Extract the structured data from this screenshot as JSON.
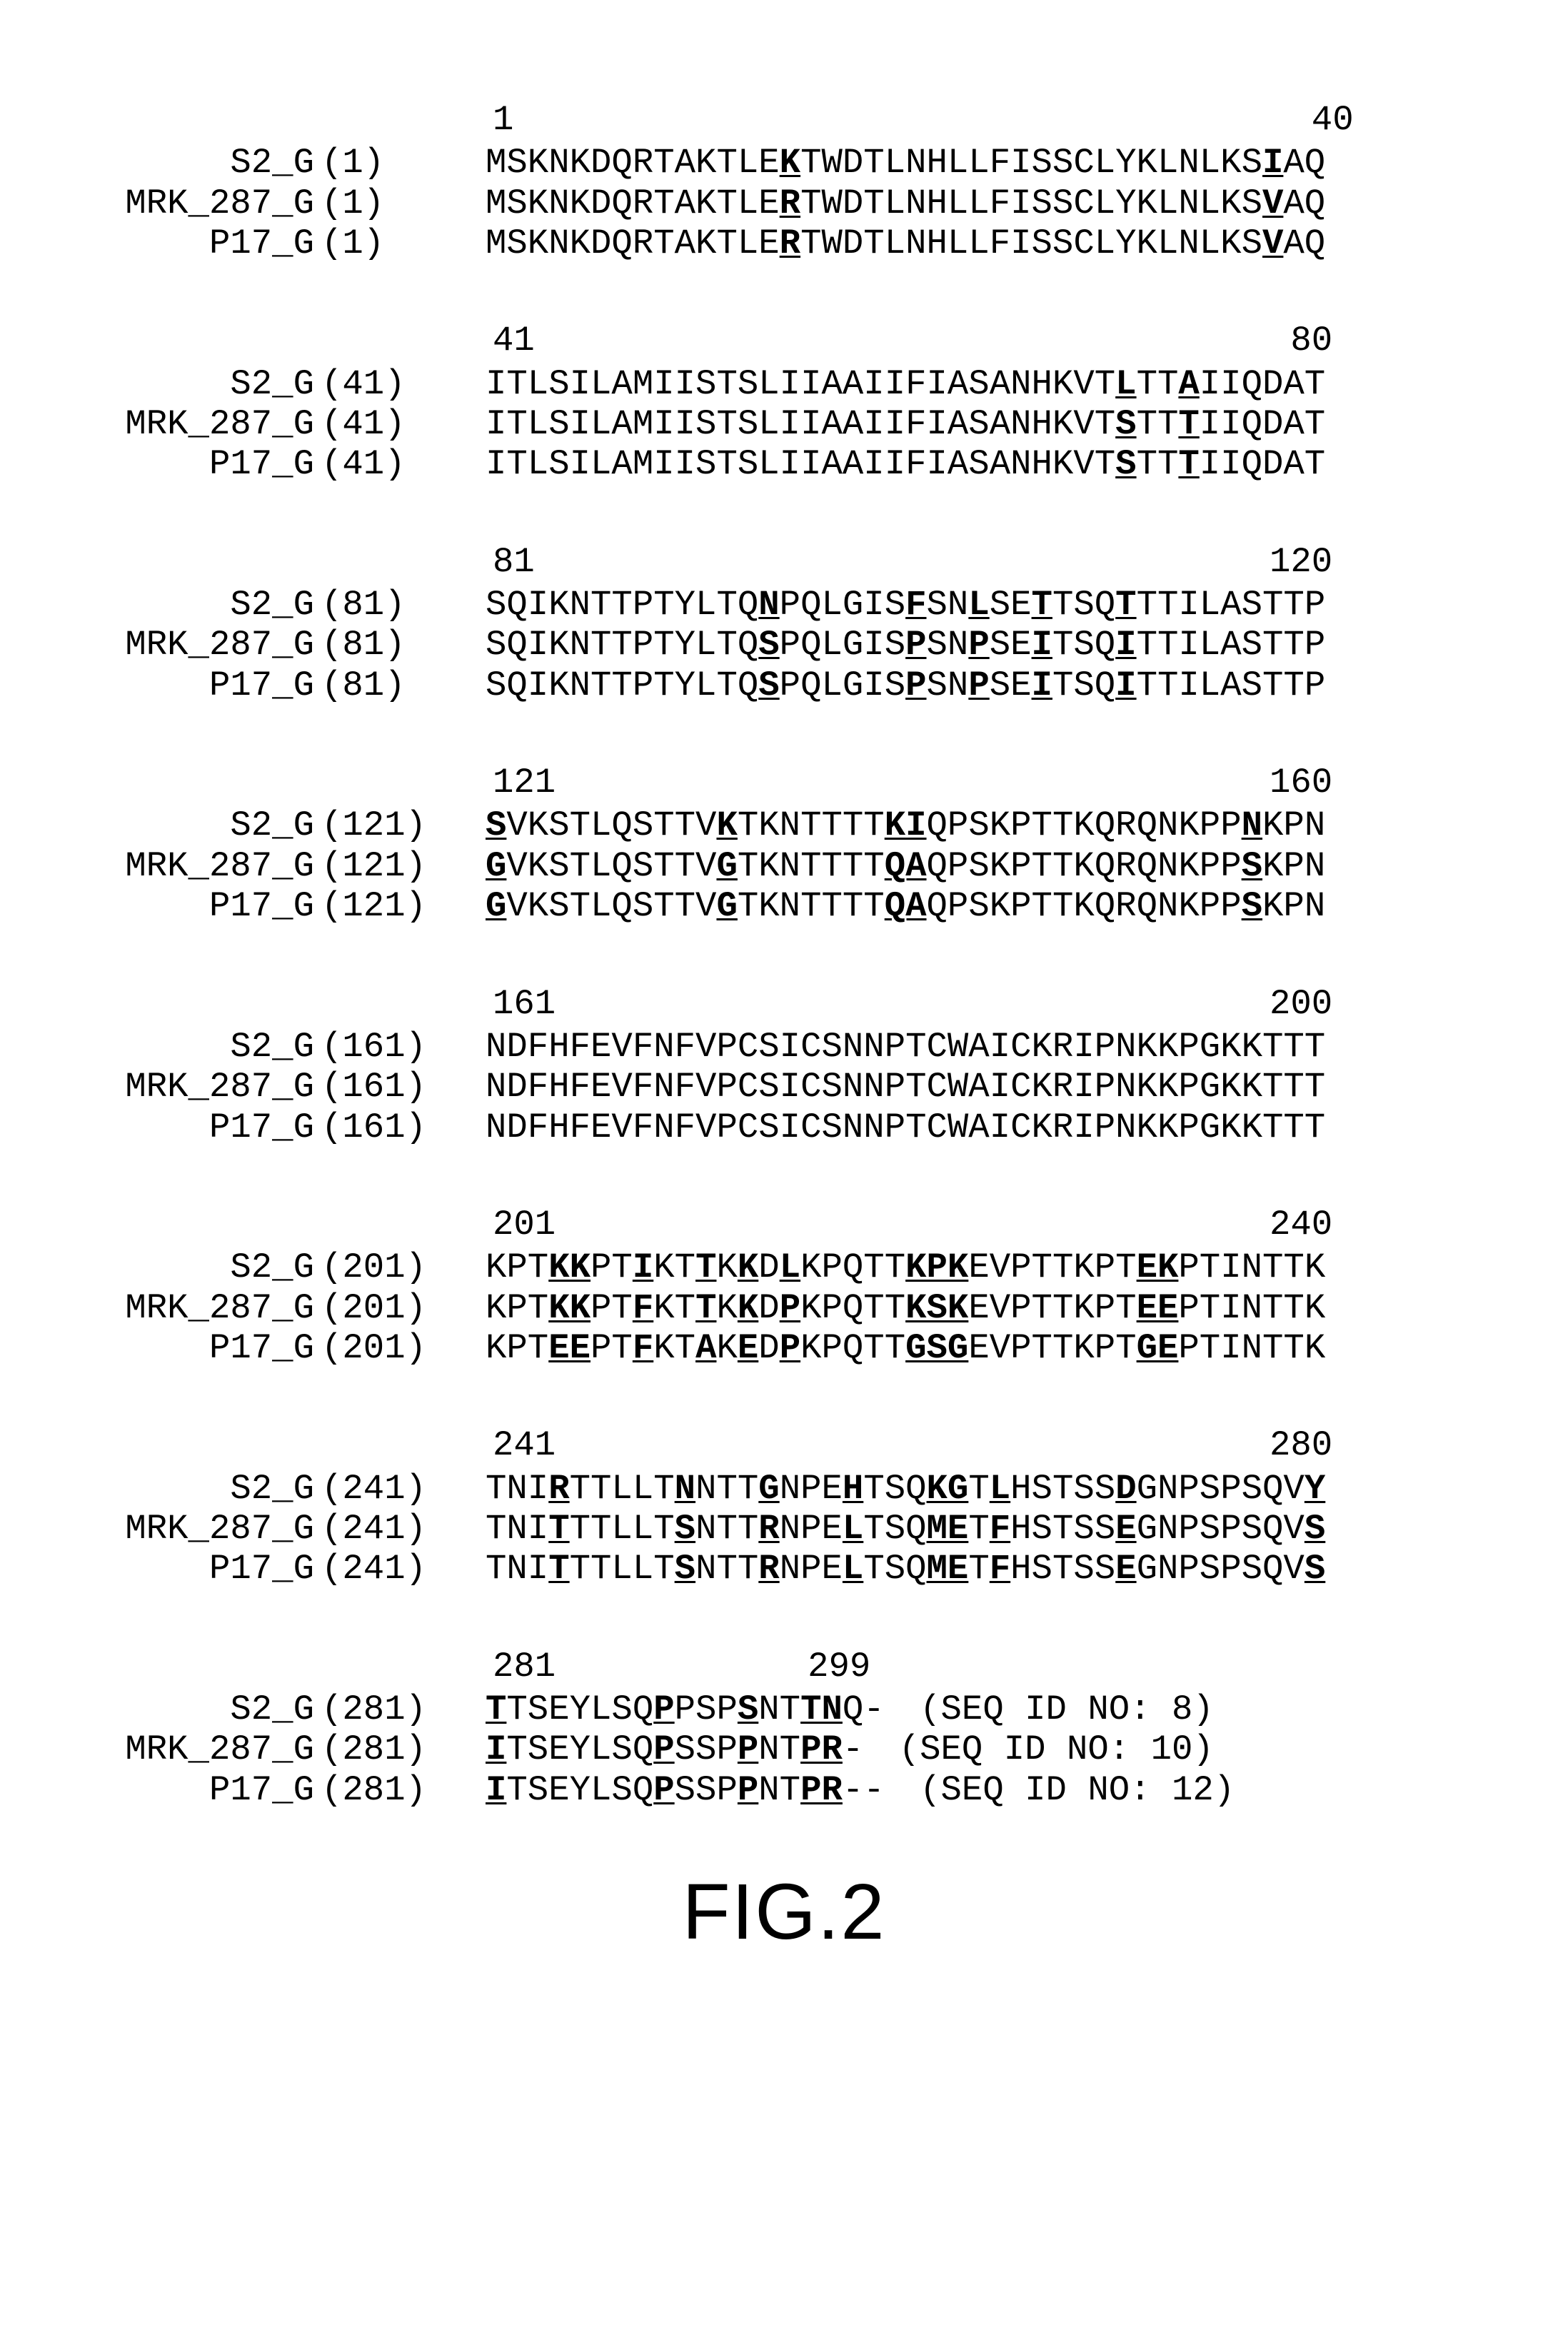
{
  "font": {
    "family": "Courier New",
    "size_pt": 37,
    "color": "#000000"
  },
  "background_color": "#ffffff",
  "figure_label": "FIG.2",
  "blocks": [
    {
      "ruler": {
        "start": "1",
        "end": "40",
        "gap_chars": 38
      },
      "rows": [
        {
          "name": "S2_G",
          "pos": "(1)",
          "seq": [
            [
              "MSKNKDQRTAKTLE",
              0
            ],
            [
              "K",
              1
            ],
            [
              "TWDTLNHLLFISSCLYKLNLKS",
              0
            ],
            [
              "I",
              1
            ],
            [
              "AQ",
              0
            ]
          ]
        },
        {
          "name": "MRK_287_G",
          "pos": "(1)",
          "seq": [
            [
              "MSKNKDQRTAKTLE",
              0
            ],
            [
              "R",
              1
            ],
            [
              "TWDTLNHLLFISSCLYKLNLKS",
              0
            ],
            [
              "V",
              1
            ],
            [
              "AQ",
              0
            ]
          ]
        },
        {
          "name": "P17_G",
          "pos": "(1)",
          "seq": [
            [
              "MSKNKDQRTAKTLE",
              0
            ],
            [
              "R",
              1
            ],
            [
              "TWDTLNHLLFISSCLYKLNLKS",
              0
            ],
            [
              "V",
              1
            ],
            [
              "AQ",
              0
            ]
          ]
        }
      ]
    },
    {
      "ruler": {
        "start": "41",
        "end": "80",
        "gap_chars": 36
      },
      "rows": [
        {
          "name": "S2_G",
          "pos": "(41)",
          "seq": [
            [
              "ITLSILAMIISTSLIIAAIIFIASANHKVT",
              0
            ],
            [
              "L",
              1
            ],
            [
              "TT",
              0
            ],
            [
              "A",
              1
            ],
            [
              "IIQDAT",
              0
            ]
          ]
        },
        {
          "name": "MRK_287_G",
          "pos": "(41)",
          "seq": [
            [
              "ITLSILAMIISTSLIIAAIIFIASANHKVT",
              0
            ],
            [
              "S",
              1
            ],
            [
              "TT",
              0
            ],
            [
              "T",
              1
            ],
            [
              "IIQDAT",
              0
            ]
          ]
        },
        {
          "name": "P17_G",
          "pos": "(41)",
          "seq": [
            [
              "ITLSILAMIISTSLIIAAIIFIASANHKVT",
              0
            ],
            [
              "S",
              1
            ],
            [
              "TT",
              0
            ],
            [
              "T",
              1
            ],
            [
              "IIQDAT",
              0
            ]
          ]
        }
      ]
    },
    {
      "ruler": {
        "start": "81",
        "end": "120",
        "gap_chars": 35
      },
      "rows": [
        {
          "name": "S2_G",
          "pos": "(81)",
          "seq": [
            [
              "SQIKNTTPTYLTQ",
              0
            ],
            [
              "N",
              1
            ],
            [
              "PQLGIS",
              0
            ],
            [
              "F",
              1
            ],
            [
              "SN",
              0
            ],
            [
              "L",
              1
            ],
            [
              "SE",
              0
            ],
            [
              "T",
              1
            ],
            [
              "TSQ",
              0
            ],
            [
              "T",
              1
            ],
            [
              "TTILASTTP",
              0
            ]
          ]
        },
        {
          "name": "MRK_287_G",
          "pos": "(81)",
          "seq": [
            [
              "SQIKNTTPTYLTQ",
              0
            ],
            [
              "S",
              1
            ],
            [
              "PQLGIS",
              0
            ],
            [
              "P",
              1
            ],
            [
              "SN",
              0
            ],
            [
              "P",
              1
            ],
            [
              "SE",
              0
            ],
            [
              "I",
              1
            ],
            [
              "TSQ",
              0
            ],
            [
              "I",
              1
            ],
            [
              "TTILASTTP",
              0
            ]
          ]
        },
        {
          "name": "P17_G",
          "pos": "(81)",
          "seq": [
            [
              "SQIKNTTPTYLTQ",
              0
            ],
            [
              "S",
              1
            ],
            [
              "PQLGIS",
              0
            ],
            [
              "P",
              1
            ],
            [
              "SN",
              0
            ],
            [
              "P",
              1
            ],
            [
              "SE",
              0
            ],
            [
              "I",
              1
            ],
            [
              "TSQ",
              0
            ],
            [
              "I",
              1
            ],
            [
              "TTILASTTP",
              0
            ]
          ]
        }
      ]
    },
    {
      "ruler": {
        "start": "121",
        "end": "160",
        "gap_chars": 34
      },
      "rows": [
        {
          "name": "S2_G",
          "pos": "(121)",
          "seq": [
            [
              "S",
              1
            ],
            [
              "VKSTLQSTTV",
              0
            ],
            [
              "K",
              1
            ],
            [
              "TKNTTTT",
              0
            ],
            [
              "KI",
              1
            ],
            [
              "QPSKPTTKQRQNKPP",
              0
            ],
            [
              "N",
              1
            ],
            [
              "KPN",
              0
            ]
          ]
        },
        {
          "name": "MRK_287_G",
          "pos": "(121)",
          "seq": [
            [
              "G",
              1
            ],
            [
              "VKSTLQSTTV",
              0
            ],
            [
              "G",
              1
            ],
            [
              "TKNTTTT",
              0
            ],
            [
              "QA",
              1
            ],
            [
              "QPSKPTTKQRQNKPP",
              0
            ],
            [
              "S",
              1
            ],
            [
              "KPN",
              0
            ]
          ]
        },
        {
          "name": "P17_G",
          "pos": "(121)",
          "seq": [
            [
              "G",
              1
            ],
            [
              "VKSTLQSTTV",
              0
            ],
            [
              "G",
              1
            ],
            [
              "TKNTTTT",
              0
            ],
            [
              "QA",
              1
            ],
            [
              "QPSKPTTKQRQNKPP",
              0
            ],
            [
              "S",
              1
            ],
            [
              "KPN",
              0
            ]
          ]
        }
      ]
    },
    {
      "ruler": {
        "start": "161",
        "end": "200",
        "gap_chars": 34
      },
      "rows": [
        {
          "name": "S2_G",
          "pos": "(161)",
          "seq": [
            [
              "NDFHFEVFNFVPCSICSNNPTCWAICKRIPNKKPGKKTTT",
              0
            ]
          ]
        },
        {
          "name": "MRK_287_G",
          "pos": "(161)",
          "seq": [
            [
              "NDFHFEVFNFVPCSICSNNPTCWAICKRIPNKKPGKKTTT",
              0
            ]
          ]
        },
        {
          "name": "P17_G",
          "pos": "(161)",
          "seq": [
            [
              "NDFHFEVFNFVPCSICSNNPTCWAICKRIPNKKPGKKTTT",
              0
            ]
          ]
        }
      ]
    },
    {
      "ruler": {
        "start": "201",
        "end": "240",
        "gap_chars": 34
      },
      "rows": [
        {
          "name": "S2_G",
          "pos": "(201)",
          "seq": [
            [
              "KPT",
              0
            ],
            [
              "KK",
              1
            ],
            [
              "PT",
              0
            ],
            [
              "I",
              1
            ],
            [
              "KT",
              0
            ],
            [
              "T",
              1
            ],
            [
              "K",
              0
            ],
            [
              "K",
              1
            ],
            [
              "D",
              0
            ],
            [
              "L",
              1
            ],
            [
              "KPQTT",
              0
            ],
            [
              "KPK",
              1
            ],
            [
              "EVPTTKPT",
              0
            ],
            [
              "EK",
              1
            ],
            [
              "PTINTTK",
              0
            ]
          ]
        },
        {
          "name": "MRK_287_G",
          "pos": "(201)",
          "seq": [
            [
              "KPT",
              0
            ],
            [
              "KK",
              1
            ],
            [
              "PT",
              0
            ],
            [
              "F",
              1
            ],
            [
              "KT",
              0
            ],
            [
              "T",
              1
            ],
            [
              "K",
              0
            ],
            [
              "K",
              1
            ],
            [
              "D",
              0
            ],
            [
              "P",
              1
            ],
            [
              "KPQTT",
              0
            ],
            [
              "KSK",
              1
            ],
            [
              "EVPTTKPT",
              0
            ],
            [
              "EE",
              1
            ],
            [
              "PTINTTK",
              0
            ]
          ]
        },
        {
          "name": "P17_G",
          "pos": "(201)",
          "seq": [
            [
              "KPT",
              0
            ],
            [
              "EE",
              1
            ],
            [
              "PT",
              0
            ],
            [
              "F",
              1
            ],
            [
              "KT",
              0
            ],
            [
              "A",
              1
            ],
            [
              "K",
              0
            ],
            [
              "E",
              1
            ],
            [
              "D",
              0
            ],
            [
              "P",
              1
            ],
            [
              "KPQTT",
              0
            ],
            [
              "GSG",
              1
            ],
            [
              "EVPTTKPT",
              0
            ],
            [
              "GE",
              1
            ],
            [
              "PTINTTK",
              0
            ]
          ]
        }
      ]
    },
    {
      "ruler": {
        "start": "241",
        "end": "280",
        "gap_chars": 34
      },
      "rows": [
        {
          "name": "S2_G",
          "pos": "(241)",
          "seq": [
            [
              "TNI",
              0
            ],
            [
              "R",
              1
            ],
            [
              "TTLLT",
              0
            ],
            [
              "N",
              1
            ],
            [
              "NTT",
              0
            ],
            [
              "G",
              1
            ],
            [
              "NPE",
              0
            ],
            [
              "H",
              1
            ],
            [
              "TSQ",
              0
            ],
            [
              "KG",
              1
            ],
            [
              "T",
              0
            ],
            [
              "L",
              1
            ],
            [
              "HSTSS",
              0
            ],
            [
              "D",
              1
            ],
            [
              "GNPSPSQV",
              0
            ],
            [
              "Y",
              1
            ]
          ]
        },
        {
          "name": "MRK_287_G",
          "pos": "(241)",
          "seq": [
            [
              "TNI",
              0
            ],
            [
              "T",
              1
            ],
            [
              "TTLLT",
              0
            ],
            [
              "S",
              1
            ],
            [
              "NTT",
              0
            ],
            [
              "R",
              1
            ],
            [
              "NPE",
              0
            ],
            [
              "L",
              1
            ],
            [
              "TSQ",
              0
            ],
            [
              "ME",
              1
            ],
            [
              "T",
              0
            ],
            [
              "F",
              1
            ],
            [
              "HSTSS",
              0
            ],
            [
              "E",
              1
            ],
            [
              "GNPSPSQV",
              0
            ],
            [
              "S",
              1
            ]
          ]
        },
        {
          "name": "P17_G",
          "pos": "(241)",
          "seq": [
            [
              "TNI",
              0
            ],
            [
              "T",
              1
            ],
            [
              "TTLLT",
              0
            ],
            [
              "S",
              1
            ],
            [
              "NTT",
              0
            ],
            [
              "R",
              1
            ],
            [
              "NPE",
              0
            ],
            [
              "L",
              1
            ],
            [
              "TSQ",
              0
            ],
            [
              "ME",
              1
            ],
            [
              "T",
              0
            ],
            [
              "F",
              1
            ],
            [
              "HSTSS",
              0
            ],
            [
              "E",
              1
            ],
            [
              "GNPSPSQV",
              0
            ],
            [
              "S",
              1
            ]
          ]
        }
      ]
    },
    {
      "ruler": {
        "start": "281",
        "end": "299",
        "gap_chars": 12
      },
      "rows": [
        {
          "name": "S2_G",
          "pos": "(281)",
          "seq": [
            [
              "T",
              1
            ],
            [
              "TSEYLSQ",
              0
            ],
            [
              "P",
              1
            ],
            [
              "PSP",
              0
            ],
            [
              "S",
              1
            ],
            [
              "NT",
              0
            ],
            [
              "TN",
              1
            ],
            [
              "Q-",
              0
            ]
          ],
          "tail": "(SEQ ID NO: 8)"
        },
        {
          "name": "MRK_287_G",
          "pos": "(281)",
          "seq": [
            [
              "I",
              1
            ],
            [
              "TSEYLSQ",
              0
            ],
            [
              "P",
              1
            ],
            [
              "SSP",
              0
            ],
            [
              "P",
              1
            ],
            [
              "NT",
              0
            ],
            [
              "PR",
              1
            ],
            [
              "-",
              0
            ]
          ],
          "tail": "(SEQ ID NO: 10)"
        },
        {
          "name": "P17_G",
          "pos": "(281)",
          "seq": [
            [
              "I",
              1
            ],
            [
              "TSEYLSQ",
              0
            ],
            [
              "P",
              1
            ],
            [
              "SSP",
              0
            ],
            [
              "P",
              1
            ],
            [
              "NT",
              0
            ],
            [
              "PR",
              1
            ],
            [
              "--",
              0
            ]
          ],
          "tail": "(SEQ ID NO: 12)"
        }
      ]
    }
  ]
}
